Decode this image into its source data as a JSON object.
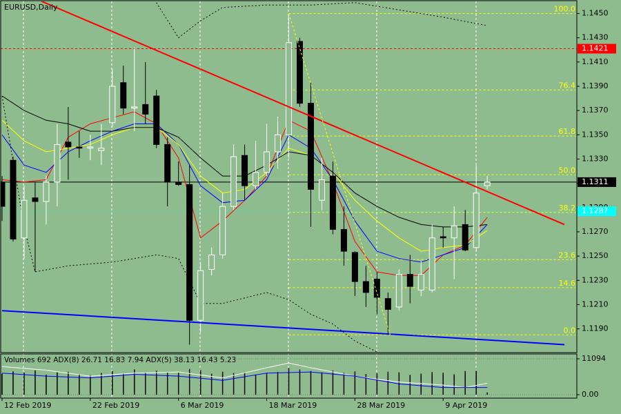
{
  "chart_data": {
    "type": "candlestick",
    "title": "EURUSD,Daily",
    "categories": [
      "12 Feb 2019",
      null,
      null,
      null,
      null,
      null,
      null,
      null,
      "22 Feb 2019",
      null,
      null,
      null,
      null,
      null,
      null,
      null,
      "6 Mar 2019",
      null,
      null,
      null,
      null,
      null,
      null,
      null,
      "18 Mar 2019",
      null,
      null,
      null,
      null,
      null,
      null,
      null,
      "28 Mar 2019",
      null,
      null,
      null,
      null,
      null,
      null,
      null,
      "9 Apr 2019",
      null,
      null,
      null,
      null
    ],
    "open": [
      1.1311,
      1.1329,
      1.1265,
      1.1298,
      1.1295,
      1.1311,
      1.1344,
      1.134,
      1.1339,
      1.1337,
      1.136,
      1.1393,
      1.1372,
      1.1375,
      1.1382,
      1.1342,
      1.1311,
      1.1309,
      1.1197,
      1.1239,
      1.1251,
      1.1291,
      1.1333,
      1.1308,
      1.1319,
      1.1336,
      1.135,
      1.1427,
      1.1376,
      1.1296,
      1.1316,
      1.1272,
      1.1253,
      1.1229,
      1.1231,
      1.1215,
      1.1208,
      1.1235,
      1.1222,
      1.1222,
      1.1266,
      1.1265,
      1.1276,
      1.1257,
      1.1308
    ],
    "high": [
      1.1316,
      1.1332,
      1.1308,
      1.1311,
      1.1316,
      1.1359,
      1.1373,
      1.1353,
      1.135,
      1.1359,
      1.1404,
      1.1407,
      1.1422,
      1.141,
      1.1387,
      1.1348,
      1.1328,
      1.1325,
      1.1245,
      1.1257,
      1.1302,
      1.1342,
      1.1342,
      1.1345,
      1.1359,
      1.1365,
      1.1449,
      1.143,
      1.1393,
      1.1331,
      1.1328,
      1.1291,
      1.1254,
      1.1242,
      1.1237,
      1.122,
      1.1239,
      1.1251,
      1.1246,
      1.1276,
      1.1274,
      1.1291,
      1.1288,
      1.1325,
      1.1316
    ],
    "low": [
      1.1279,
      1.1262,
      1.1248,
      1.1237,
      1.1276,
      1.1291,
      1.1313,
      1.1331,
      1.1329,
      1.1325,
      1.1356,
      1.1367,
      1.1353,
      1.1359,
      1.1339,
      1.1291,
      1.1308,
      1.1177,
      1.1187,
      1.1234,
      1.1248,
      1.1288,
      1.1296,
      1.1305,
      1.1316,
      1.1322,
      1.1331,
      1.1373,
      1.1274,
      1.1288,
      1.1268,
      1.1242,
      1.1217,
      1.1208,
      1.1202,
      1.1185,
      1.1205,
      1.1211,
      1.1217,
      1.122,
      1.1257,
      1.1231,
      1.1254,
      1.1254,
      1.1305
    ],
    "close": [
      1.1291,
      1.1264,
      1.1296,
      1.1295,
      1.1311,
      1.1342,
      1.134,
      1.1339,
      1.134,
      1.1339,
      1.139,
      1.1372,
      1.1373,
      1.1367,
      1.1342,
      1.1311,
      1.1309,
      1.1197,
      1.1238,
      1.1251,
      1.1291,
      1.1332,
      1.1308,
      1.1319,
      1.1336,
      1.135,
      1.1426,
      1.1376,
      1.1305,
      1.1313,
      1.1272,
      1.1254,
      1.1229,
      1.122,
      1.1216,
      1.1206,
      1.1235,
      1.1225,
      1.1235,
      1.1265,
      1.1265,
      1.1275,
      1.1255,
      1.1302,
      1.1311
    ],
    "bull_color": "#ffffff",
    "bear_color": "#000000",
    "xlim": [
      -0.125,
      52.125
    ],
    "ylim": [
      1.1171,
      1.146
    ],
    "yticks": [
      {
        "value": 1.119,
        "label": "1.1190"
      },
      {
        "value": 1.121,
        "label": "1.1210"
      },
      {
        "value": 1.123,
        "label": "1.1230"
      },
      {
        "value": 1.125,
        "label": "1.1250"
      },
      {
        "value": 1.127,
        "label": "1.1270"
      },
      {
        "value": 1.129,
        "label": "1.1290"
      },
      {
        "value": 1.131,
        "label": "1.1310"
      },
      {
        "value": 1.133,
        "label": "1.1330"
      },
      {
        "value": 1.135,
        "label": "1.1350"
      },
      {
        "value": 1.137,
        "label": "1.1370"
      },
      {
        "value": 1.139,
        "label": "1.1390"
      },
      {
        "value": 1.141,
        "label": "1.1410"
      },
      {
        "value": 1.143,
        "label": "1.1430"
      },
      {
        "value": 1.145,
        "label": "1.1450"
      }
    ],
    "lines": [
      {
        "color": "#ff0000",
        "dash": "none",
        "x": [
          0,
          2,
          4,
          6,
          8,
          10,
          12,
          14,
          16,
          18,
          20,
          22,
          24,
          26,
          28,
          30,
          32,
          34,
          36,
          38,
          40,
          42,
          44
        ],
        "values": [
          1.1313,
          1.1311,
          1.1313,
          1.1348,
          1.1359,
          1.1364,
          1.1369,
          1.1359,
          1.1331,
          1.1265,
          1.1279,
          1.1296,
          1.1316,
          1.1362,
          1.1353,
          1.1311,
          1.1262,
          1.1237,
          1.1234,
          1.1234,
          1.1251,
          1.1259,
          1.1282
        ]
      },
      {
        "color": "#0000ff",
        "dash": "none",
        "x": [
          0,
          2,
          4,
          6,
          8,
          10,
          12,
          14,
          16,
          18,
          20,
          22,
          24,
          26,
          28,
          30,
          32,
          34,
          36,
          38,
          40,
          42,
          44
        ],
        "values": [
          1.135,
          1.1325,
          1.1319,
          1.1336,
          1.1345,
          1.1353,
          1.1359,
          1.1359,
          1.1342,
          1.1308,
          1.1294,
          1.1296,
          1.1313,
          1.135,
          1.1339,
          1.1313,
          1.1279,
          1.1254,
          1.1248,
          1.1245,
          1.1251,
          1.1257,
          1.1276
        ]
      },
      {
        "color": "#ffff00",
        "dash": "none",
        "x": [
          0,
          2,
          4,
          6,
          8,
          10,
          12,
          14,
          16,
          18,
          20,
          22,
          24,
          26,
          28,
          30,
          32,
          34,
          36,
          38,
          40,
          42,
          44
        ],
        "values": [
          1.1362,
          1.1345,
          1.1336,
          1.1339,
          1.1342,
          1.135,
          1.1356,
          1.1356,
          1.1342,
          1.1316,
          1.1302,
          1.1305,
          1.1319,
          1.1339,
          1.1333,
          1.1319,
          1.1296,
          1.1279,
          1.1265,
          1.1254,
          1.1257,
          1.1259,
          1.1271
        ]
      },
      {
        "color": "#000000",
        "dash": "none",
        "x": [
          0,
          2,
          4,
          6,
          8,
          10,
          12,
          14,
          16,
          18,
          20,
          22,
          24,
          26,
          28,
          30,
          32,
          34,
          36,
          38,
          40,
          42,
          44
        ],
        "values": [
          1.1382,
          1.137,
          1.1362,
          1.1359,
          1.1353,
          1.1353,
          1.1356,
          1.1356,
          1.1348,
          1.1331,
          1.1316,
          1.1316,
          1.1325,
          1.1336,
          1.1333,
          1.1319,
          1.1302,
          1.1291,
          1.1282,
          1.1276,
          1.1274,
          1.1274,
          1.1276
        ]
      },
      {
        "color": "#000000",
        "dash": "2 3",
        "x": [
          14,
          16,
          18,
          20,
          24,
          28,
          32,
          36,
          40,
          44
        ],
        "values": [
          1.1459,
          1.143,
          1.1444,
          1.1455,
          1.1457,
          1.1457,
          1.1459,
          1.1453,
          1.1447,
          1.144
        ]
      },
      {
        "color": "#000000",
        "dash": "2 3",
        "x": [
          0,
          2,
          3,
          6,
          10,
          14,
          16,
          18,
          20,
          24,
          26,
          28,
          30,
          32,
          34
        ],
        "values": [
          1.1382,
          1.1274,
          1.1237,
          1.1242,
          1.1245,
          1.1251,
          1.1248,
          1.1211,
          1.1211,
          1.122,
          1.1214,
          1.1202,
          1.1194,
          1.118,
          1.1171
        ]
      }
    ],
    "trendlines": [
      {
        "color": "#ff0000",
        "width": 2,
        "dash": "none",
        "x": [
          3.6,
          51
        ],
        "values": [
          1.146,
          1.1276
        ]
      },
      {
        "color": "#0000ff",
        "width": 2,
        "dash": "none",
        "x": [
          0,
          51
        ],
        "values": [
          1.1205,
          1.1177
        ]
      },
      {
        "color": "#ffff00",
        "width": 1,
        "dash": "3 3",
        "x": [
          26,
          35.2
        ],
        "values": [
          1.145,
          1.1185
        ]
      }
    ],
    "fibo": {
      "color": "#ffff00",
      "x": [
        26,
        52
      ],
      "levels": [
        {
          "label": "100.0",
          "value": 1.145
        },
        {
          "label": "76.4",
          "value": 1.1387
        },
        {
          "label": "61.8",
          "value": 1.1349
        },
        {
          "label": "50.0",
          "value": 1.1317
        },
        {
          "label": "38.2",
          "value": 1.1286
        },
        {
          "label": "23.6",
          "value": 1.1247
        },
        {
          "label": "14.6",
          "value": 1.1224
        },
        {
          "label": "0.0",
          "value": 1.1185
        }
      ]
    },
    "price_lines": [
      {
        "value": 1.1421,
        "color": "#ff0000",
        "dash": "3 3"
      },
      {
        "value": 1.1311,
        "color": "#000000",
        "dash": "none"
      },
      {
        "value": 1.1287,
        "color": "#00ffff",
        "dash": "1 3"
      }
    ],
    "indicator": {
      "label": "Volumes 692 ADX(8) 26.71 16.83 7.94 ADX(5) 38.13 16.43 5.23",
      "ylim": [
        0,
        11094
      ],
      "yticks": [
        11094,
        {
          "value": 0,
          "label": "0.00"
        }
      ],
      "volume_color": "#000000",
      "volumes": [
        6500,
        7200,
        6800,
        7500,
        6200,
        6900,
        7100,
        6400,
        6000,
        6700,
        7300,
        6600,
        7800,
        6900,
        7400,
        7000,
        6800,
        8000,
        7600,
        6500,
        7100,
        6700,
        6900,
        6200,
        6600,
        7000,
        8200,
        7800,
        7300,
        6900,
        7500,
        6800,
        7200,
        6400,
        6600,
        7100,
        6900,
        6200,
        6500,
        7000,
        6800,
        6300,
        7300,
        7400,
        692
      ],
      "adx_ylim": [
        0,
        60
      ],
      "adx_lines": [
        {
          "color": "#ffffff",
          "x": [
            0,
            4,
            8,
            12,
            16,
            20,
            24,
            26,
            28,
            32,
            36,
            40,
            42,
            44
          ],
          "values": [
            47,
            41,
            31,
            36,
            38,
            28,
            45,
            53,
            45,
            31,
            21,
            16,
            12,
            19
          ]
        },
        {
          "color": "#0000ff",
          "x": [
            0,
            4,
            8,
            12,
            16,
            20,
            24,
            28,
            32,
            36,
            40,
            44
          ],
          "values": [
            36,
            31,
            28,
            34,
            31,
            24,
            36,
            38,
            31,
            18,
            12,
            12
          ]
        }
      ]
    }
  }
}
